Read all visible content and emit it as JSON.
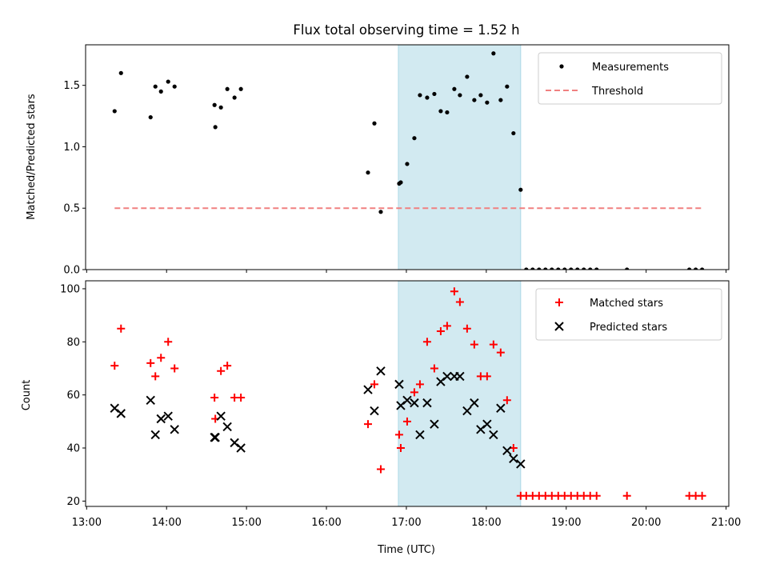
{
  "chart_data": {
    "type": "scatter",
    "title": "Flux total observing time = 1.52 h",
    "xlabel": "Time (UTC)",
    "x_ticks": [
      "13:00",
      "14:00",
      "15:00",
      "16:00",
      "17:00",
      "18:00",
      "19:00",
      "20:00",
      "21:00"
    ],
    "xlim_hours": [
      13.0,
      21.0
    ],
    "observing_window_hours": [
      16.9,
      18.43
    ],
    "colors": {
      "window": "#add8e6",
      "matched": "#ff0000",
      "predicted": "#000000",
      "threshold": "#f08080",
      "measurements": "#000000"
    },
    "panels": [
      {
        "ylabel": "Matched/Predicted stars",
        "ylim": [
          0,
          1.83
        ],
        "y_ticks": [
          "0.0",
          "0.5",
          "1.0",
          "1.5"
        ],
        "legend_position": "upper right",
        "series": [
          {
            "name": "Measurements",
            "type": "scatter",
            "marker": "dot",
            "points": [
              [
                13.35,
                1.29
              ],
              [
                13.43,
                1.6
              ],
              [
                13.8,
                1.24
              ],
              [
                13.86,
                1.49
              ],
              [
                13.93,
                1.45
              ],
              [
                14.02,
                1.53
              ],
              [
                14.1,
                1.49
              ],
              [
                14.6,
                1.34
              ],
              [
                14.61,
                1.16
              ],
              [
                14.68,
                1.32
              ],
              [
                14.76,
                1.47
              ],
              [
                14.85,
                1.4
              ],
              [
                14.93,
                1.47
              ],
              [
                16.52,
                0.79
              ],
              [
                16.6,
                1.19
              ],
              [
                16.68,
                0.47
              ],
              [
                16.91,
                0.7
              ],
              [
                16.93,
                0.71
              ],
              [
                17.01,
                0.86
              ],
              [
                17.1,
                1.07
              ],
              [
                17.17,
                1.42
              ],
              [
                17.26,
                1.4
              ],
              [
                17.35,
                1.43
              ],
              [
                17.43,
                1.29
              ],
              [
                17.51,
                1.28
              ],
              [
                17.6,
                1.47
              ],
              [
                17.67,
                1.42
              ],
              [
                17.76,
                1.57
              ],
              [
                17.85,
                1.38
              ],
              [
                17.93,
                1.42
              ],
              [
                18.01,
                1.36
              ],
              [
                18.09,
                1.76
              ],
              [
                18.18,
                1.38
              ],
              [
                18.26,
                1.49
              ],
              [
                18.34,
                1.11
              ],
              [
                18.43,
                0.65
              ],
              [
                18.5,
                0.0
              ],
              [
                18.58,
                0.0
              ],
              [
                18.66,
                0.0
              ],
              [
                18.74,
                0.0
              ],
              [
                18.82,
                0.0
              ],
              [
                18.9,
                0.0
              ],
              [
                18.98,
                0.0
              ],
              [
                19.06,
                0.0
              ],
              [
                19.14,
                0.0
              ],
              [
                19.22,
                0.0
              ],
              [
                19.3,
                0.0
              ],
              [
                19.38,
                0.0
              ],
              [
                19.76,
                0.0
              ],
              [
                20.54,
                0.0
              ],
              [
                20.62,
                0.0
              ],
              [
                20.7,
                0.0
              ]
            ]
          },
          {
            "name": "Threshold",
            "type": "line",
            "style": "dashed",
            "points": [
              [
                13.35,
                0.5
              ],
              [
                20.7,
                0.5
              ]
            ]
          }
        ]
      },
      {
        "ylabel": "Count",
        "ylim": [
          18,
          103
        ],
        "y_ticks": [
          "20",
          "40",
          "60",
          "80",
          "100"
        ],
        "legend_position": "upper right",
        "series": [
          {
            "name": "Matched stars",
            "type": "scatter",
            "marker": "plus",
            "points": [
              [
                13.35,
                71
              ],
              [
                13.43,
                85
              ],
              [
                13.8,
                72
              ],
              [
                13.86,
                67
              ],
              [
                13.93,
                74
              ],
              [
                14.02,
                80
              ],
              [
                14.1,
                70
              ],
              [
                14.6,
                59
              ],
              [
                14.61,
                51
              ],
              [
                14.68,
                69
              ],
              [
                14.76,
                71
              ],
              [
                14.85,
                59
              ],
              [
                14.93,
                59
              ],
              [
                16.52,
                49
              ],
              [
                16.6,
                64
              ],
              [
                16.68,
                32
              ],
              [
                16.91,
                45
              ],
              [
                16.93,
                40
              ],
              [
                17.01,
                50
              ],
              [
                17.1,
                61
              ],
              [
                17.17,
                64
              ],
              [
                17.26,
                80
              ],
              [
                17.35,
                70
              ],
              [
                17.43,
                84
              ],
              [
                17.51,
                86
              ],
              [
                17.6,
                99
              ],
              [
                17.67,
                95
              ],
              [
                17.76,
                85
              ],
              [
                17.85,
                79
              ],
              [
                17.93,
                67
              ],
              [
                18.01,
                67
              ],
              [
                18.09,
                79
              ],
              [
                18.18,
                76
              ],
              [
                18.26,
                58
              ],
              [
                18.34,
                40
              ],
              [
                18.43,
                22
              ],
              [
                18.5,
                22
              ],
              [
                18.58,
                22
              ],
              [
                18.66,
                22
              ],
              [
                18.74,
                22
              ],
              [
                18.82,
                22
              ],
              [
                18.9,
                22
              ],
              [
                18.98,
                22
              ],
              [
                19.06,
                22
              ],
              [
                19.14,
                22
              ],
              [
                19.22,
                22
              ],
              [
                19.3,
                22
              ],
              [
                19.38,
                22
              ],
              [
                19.76,
                22
              ],
              [
                20.54,
                22
              ],
              [
                20.62,
                22
              ],
              [
                20.7,
                22
              ]
            ]
          },
          {
            "name": "Predicted stars",
            "type": "scatter",
            "marker": "cross",
            "points": [
              [
                13.35,
                55
              ],
              [
                13.43,
                53
              ],
              [
                13.8,
                58
              ],
              [
                13.86,
                45
              ],
              [
                13.93,
                51
              ],
              [
                14.02,
                52
              ],
              [
                14.1,
                47
              ],
              [
                14.6,
                44
              ],
              [
                14.61,
                44
              ],
              [
                14.68,
                52
              ],
              [
                14.76,
                48
              ],
              [
                14.85,
                42
              ],
              [
                14.93,
                40
              ],
              [
                16.52,
                62
              ],
              [
                16.6,
                54
              ],
              [
                16.68,
                69
              ],
              [
                16.91,
                64
              ],
              [
                16.93,
                56
              ],
              [
                17.01,
                58
              ],
              [
                17.1,
                57
              ],
              [
                17.17,
                45
              ],
              [
                17.26,
                57
              ],
              [
                17.35,
                49
              ],
              [
                17.43,
                65
              ],
              [
                17.51,
                67
              ],
              [
                17.6,
                67
              ],
              [
                17.67,
                67
              ],
              [
                17.76,
                54
              ],
              [
                17.85,
                57
              ],
              [
                17.93,
                47
              ],
              [
                18.01,
                49
              ],
              [
                18.09,
                45
              ],
              [
                18.18,
                55
              ],
              [
                18.26,
                39
              ],
              [
                18.34,
                36
              ],
              [
                18.43,
                34
              ]
            ]
          }
        ]
      }
    ]
  }
}
